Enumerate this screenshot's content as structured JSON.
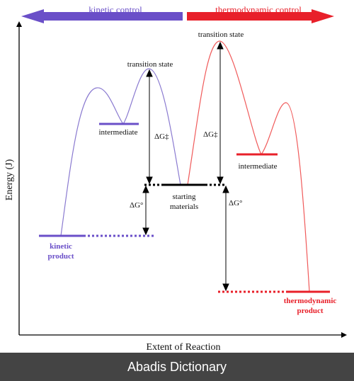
{
  "diagram": {
    "kinetic_control": "kinetic control",
    "thermodynamic_control": "thermodynamic control",
    "y_axis": "Energy (J)",
    "x_axis": "Extent of Reaction",
    "ts_kinetic": "transition state",
    "ts_thermo": "transition state",
    "intermediate_kinetic": "intermediate",
    "intermediate_thermo": "intermediate",
    "starting_materials_1": "starting",
    "starting_materials_2": "materials",
    "delta_g_dagger": "ΔG‡",
    "delta_g_dagger_2": "ΔG‡",
    "delta_g_zero": "ΔG°",
    "delta_g_zero_2": "ΔG°",
    "kinetic_product_1": "kinetic",
    "kinetic_product_2": "product",
    "thermo_product_1": "thermodynamic",
    "thermo_product_2": "product",
    "colors": {
      "kinetic": "#6a4fc8",
      "thermo": "#e8202a",
      "kinetic_curve": "#8a7ad0",
      "thermo_curve": "#f05a5a"
    }
  },
  "footer": {
    "brand": "Abadis Dictionary"
  }
}
